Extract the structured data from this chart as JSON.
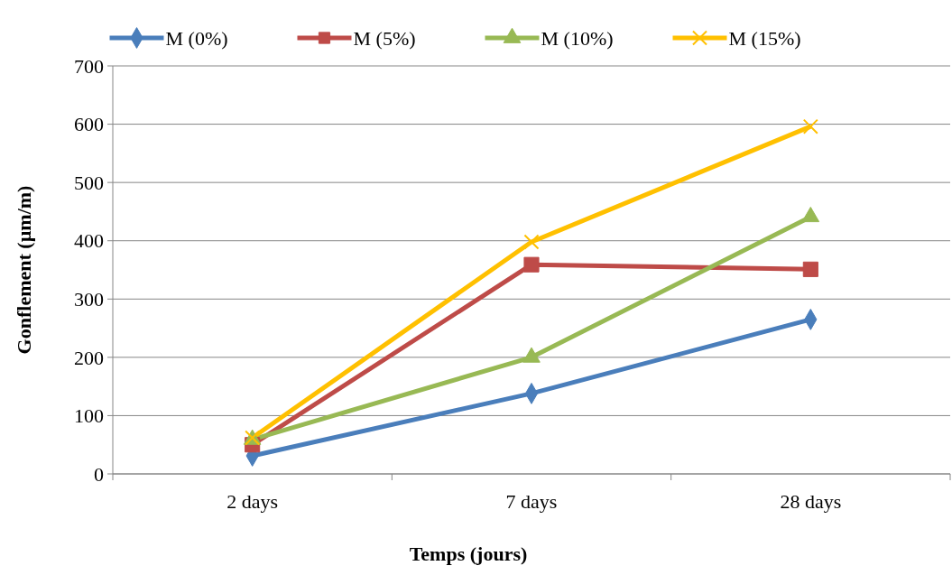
{
  "chart_data": {
    "type": "line",
    "xlabel": "Temps (jours)",
    "ylabel": "Gonflement  (µm/m)",
    "categories": [
      "2 days",
      "7 days",
      "28 days"
    ],
    "series": [
      {
        "name": "M (0%)",
        "color": "#4a7ebb",
        "marker": "diamond",
        "values": [
          31,
          138,
          265
        ]
      },
      {
        "name": "M (5%)",
        "color": "#be4b48",
        "marker": "square",
        "values": [
          50,
          359,
          351
        ]
      },
      {
        "name": "M (10%)",
        "color": "#98b954",
        "marker": "triangle",
        "values": [
          59,
          200,
          441
        ]
      },
      {
        "name": "M (15%)",
        "color": "#ffc000",
        "marker": "cross",
        "values": [
          62,
          398,
          596
        ]
      }
    ],
    "ylim": [
      0,
      700
    ],
    "yticks": [
      0,
      100,
      200,
      300,
      400,
      500,
      600,
      700
    ],
    "grid": "y",
    "legend": "top"
  }
}
